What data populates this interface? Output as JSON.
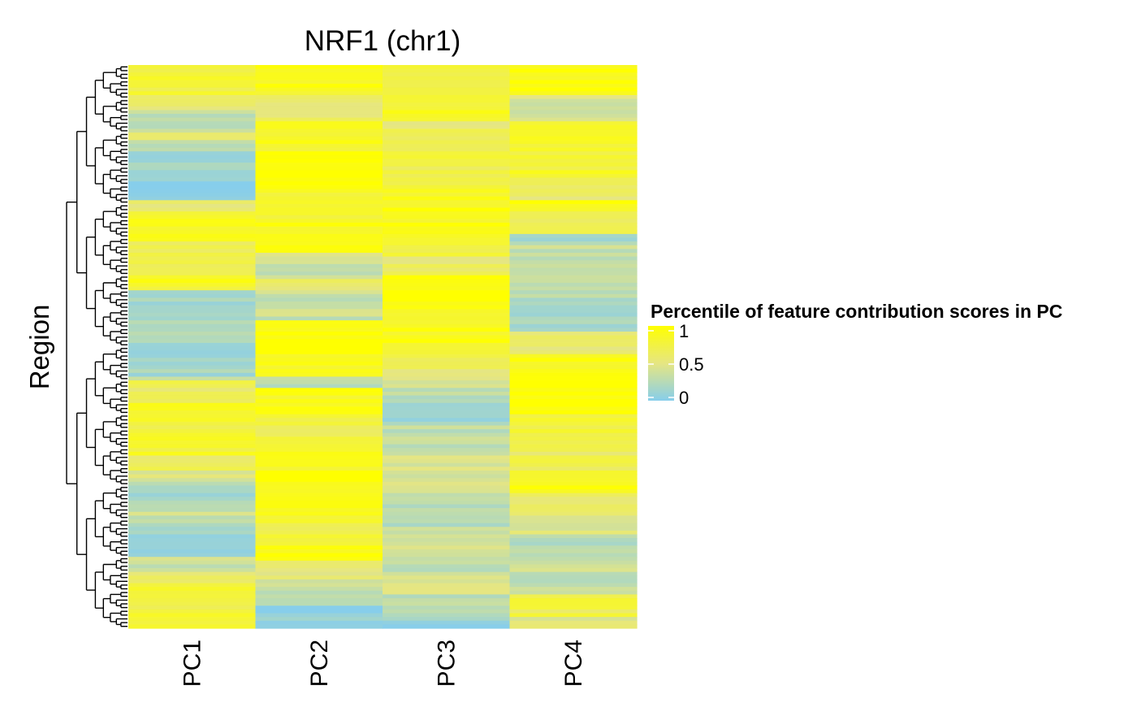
{
  "chart_data": {
    "type": "heatmap",
    "title": "NRF1 (chr1)",
    "xlabel": "",
    "ylabel": "Region",
    "categories": [
      "PC1",
      "PC2",
      "PC3",
      "PC4"
    ],
    "rows": 150,
    "row_dendrogram": true,
    "value_range": [
      0,
      1
    ],
    "legend": {
      "title": "Percentile of feature contribution scores in PC",
      "ticks": [
        {
          "value": 1,
          "label": "1"
        },
        {
          "value": 0.5,
          "label": "0.5"
        },
        {
          "value": 0,
          "label": "0"
        }
      ],
      "placement": "right"
    },
    "colors": {
      "low": "#87CEEB",
      "high": "#FFFF00"
    },
    "column_segments": [
      [
        [
          0.05,
          0.75
        ],
        [
          0.03,
          0.45
        ],
        [
          0.08,
          0.55
        ],
        [
          0.08,
          0.4
        ],
        [
          0.12,
          0.3
        ],
        [
          0.13,
          0.5
        ],
        [
          0.14,
          0.4
        ],
        [
          0.09,
          0.35
        ],
        [
          0.07,
          0.25
        ],
        [
          0.08,
          0.15
        ],
        [
          0.1,
          0.05
        ],
        [
          0.15,
          0.25
        ],
        [
          0.2,
          0.12
        ],
        [
          0.24,
          0.05
        ],
        [
          0.26,
          0.5
        ],
        [
          0.31,
          0.85
        ],
        [
          0.37,
          0.7
        ],
        [
          0.4,
          0.85
        ],
        [
          0.5,
          0.2
        ],
        [
          0.52,
          0.08
        ],
        [
          0.55,
          0.15
        ],
        [
          0.56,
          0.35
        ],
        [
          0.6,
          0.65
        ],
        [
          0.62,
          0.85
        ],
        [
          0.65,
          0.75
        ],
        [
          0.69,
          0.8
        ],
        [
          0.72,
          0.65
        ],
        [
          0.74,
          0.45
        ],
        [
          0.79,
          0.2
        ],
        [
          0.8,
          0.35
        ],
        [
          0.83,
          0.25
        ],
        [
          0.87,
          0.05
        ],
        [
          0.9,
          0.35
        ],
        [
          0.92,
          0.6
        ],
        [
          0.95,
          0.8
        ],
        [
          1.0,
          0.75
        ]
      ],
      [
        [
          0.05,
          0.9
        ],
        [
          0.1,
          0.6
        ],
        [
          0.15,
          0.85
        ],
        [
          0.22,
          1.0
        ],
        [
          0.27,
          0.8
        ],
        [
          0.33,
          0.92
        ],
        [
          0.35,
          0.45
        ],
        [
          0.38,
          0.3
        ],
        [
          0.4,
          0.55
        ],
        [
          0.45,
          0.35
        ],
        [
          0.51,
          0.95
        ],
        [
          0.55,
          0.85
        ],
        [
          0.57,
          0.3
        ],
        [
          0.62,
          0.9
        ],
        [
          0.67,
          0.7
        ],
        [
          0.72,
          0.85
        ],
        [
          0.8,
          0.95
        ],
        [
          0.85,
          0.75
        ],
        [
          0.88,
          0.95
        ],
        [
          0.91,
          0.55
        ],
        [
          0.94,
          0.35
        ],
        [
          0.96,
          0.2
        ],
        [
          1.0,
          0.05
        ]
      ],
      [
        [
          0.05,
          0.7
        ],
        [
          0.1,
          0.85
        ],
        [
          0.15,
          0.6
        ],
        [
          0.22,
          0.7
        ],
        [
          0.3,
          0.9
        ],
        [
          0.34,
          0.75
        ],
        [
          0.37,
          0.6
        ],
        [
          0.43,
          1.0
        ],
        [
          0.5,
          0.9
        ],
        [
          0.54,
          0.75
        ],
        [
          0.57,
          0.45
        ],
        [
          0.6,
          0.3
        ],
        [
          0.63,
          0.15
        ],
        [
          0.68,
          0.3
        ],
        [
          0.72,
          0.4
        ],
        [
          0.76,
          0.45
        ],
        [
          0.79,
          0.3
        ],
        [
          0.82,
          0.2
        ],
        [
          0.87,
          0.4
        ],
        [
          0.9,
          0.25
        ],
        [
          0.94,
          0.4
        ],
        [
          0.98,
          0.3
        ],
        [
          1.0,
          0.1
        ]
      ],
      [
        [
          0.05,
          0.95
        ],
        [
          0.1,
          0.4
        ],
        [
          0.2,
          0.8
        ],
        [
          0.24,
          0.6
        ],
        [
          0.26,
          0.95
        ],
        [
          0.3,
          0.7
        ],
        [
          0.31,
          0.1
        ],
        [
          0.35,
          0.35
        ],
        [
          0.38,
          0.4
        ],
        [
          0.42,
          0.25
        ],
        [
          0.47,
          0.15
        ],
        [
          0.51,
          0.6
        ],
        [
          0.56,
          0.9
        ],
        [
          0.62,
          1.0
        ],
        [
          0.66,
          0.75
        ],
        [
          0.72,
          0.65
        ],
        [
          0.76,
          0.9
        ],
        [
          0.8,
          0.6
        ],
        [
          0.83,
          0.45
        ],
        [
          0.88,
          0.25
        ],
        [
          0.9,
          0.45
        ],
        [
          0.92,
          0.15
        ],
        [
          0.94,
          0.35
        ],
        [
          0.98,
          0.7
        ],
        [
          1.0,
          0.5
        ]
      ]
    ]
  }
}
